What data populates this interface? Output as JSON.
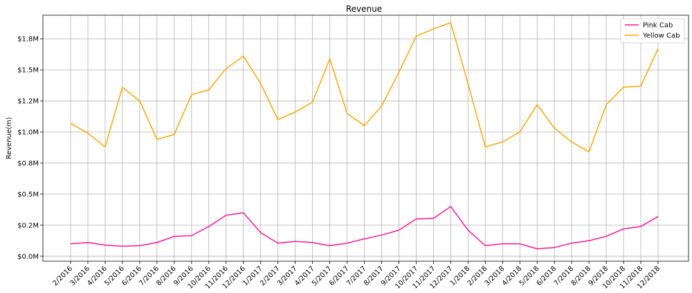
{
  "chart_data": {
    "type": "line",
    "title": "Revenue",
    "xlabel": "",
    "ylabel": "Revenue(m)",
    "ylim": [
      -0.04,
      1.94
    ],
    "yticks": [
      {
        "value": 0.0,
        "label": "$0.0M"
      },
      {
        "value": 0.25,
        "label": "$0.2M"
      },
      {
        "value": 0.5,
        "label": "$0.5M"
      },
      {
        "value": 0.75,
        "label": "$0.8M"
      },
      {
        "value": 1.0,
        "label": "$1.0M"
      },
      {
        "value": 1.25,
        "label": "$1.2M"
      },
      {
        "value": 1.5,
        "label": "$1.5M"
      },
      {
        "value": 1.75,
        "label": "$1.8M"
      }
    ],
    "categories": [
      "2/2016",
      "3/2016",
      "4/2016",
      "5/2016",
      "6/2016",
      "7/2016",
      "8/2016",
      "9/2016",
      "10/2016",
      "11/2016",
      "12/2016",
      "1/2017",
      "2/2017",
      "3/2017",
      "4/2017",
      "5/2017",
      "6/2017",
      "7/2017",
      "8/2017",
      "9/2017",
      "10/2017",
      "11/2017",
      "12/2017",
      "1/2018",
      "2/2018",
      "3/2018",
      "4/2018",
      "5/2018",
      "6/2018",
      "7/2018",
      "8/2018",
      "9/2018",
      "10/2018",
      "11/2018",
      "12/2018"
    ],
    "grid": true,
    "legend_position": "top-right",
    "series": [
      {
        "name": "Pink Cab",
        "color": "#ff1493",
        "values": [
          0.1,
          0.11,
          0.09,
          0.08,
          0.085,
          0.11,
          0.16,
          0.165,
          0.24,
          0.33,
          0.35,
          0.19,
          0.105,
          0.12,
          0.11,
          0.085,
          0.105,
          0.14,
          0.17,
          0.21,
          0.3,
          0.305,
          0.4,
          0.21,
          0.085,
          0.1,
          0.1,
          0.06,
          0.07,
          0.105,
          0.125,
          0.16,
          0.22,
          0.24,
          0.32
        ]
      },
      {
        "name": "Yellow Cab",
        "color": "#ffa500",
        "values": [
          1.07,
          0.99,
          0.88,
          1.36,
          1.25,
          0.94,
          0.98,
          1.3,
          1.34,
          1.51,
          1.61,
          1.39,
          1.1,
          1.16,
          1.24,
          1.59,
          1.15,
          1.05,
          1.21,
          1.48,
          1.77,
          1.83,
          1.88,
          1.39,
          0.88,
          0.92,
          1.0,
          1.22,
          1.03,
          0.92,
          0.84,
          1.22,
          1.36,
          1.37,
          1.67
        ]
      }
    ]
  }
}
